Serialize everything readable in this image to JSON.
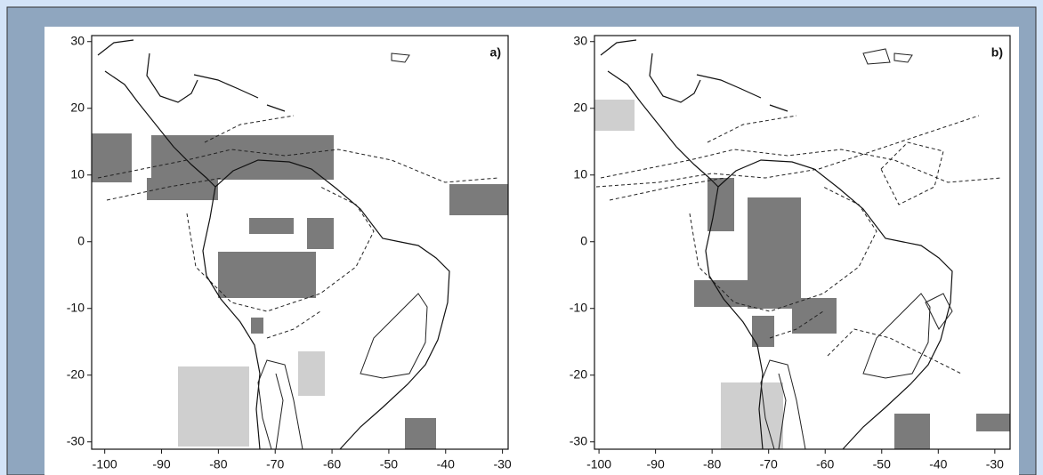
{
  "figure": {
    "panels": [
      {
        "label": "a)",
        "xlim": [
          -102.3,
          -29
        ],
        "ylim": [
          -31.1,
          30.9
        ],
        "xticks": [
          -100,
          -90,
          -80,
          -70,
          -60,
          -50,
          -40,
          -30
        ],
        "yticks": [
          30,
          20,
          10,
          0,
          -10,
          -20,
          -30
        ]
      },
      {
        "label": "b)",
        "xlim": [
          -100.8,
          -27.3
        ],
        "ylim": [
          -31.1,
          30.9
        ],
        "xticks": [
          -100,
          -90,
          -80,
          -70,
          -60,
          -50,
          -40,
          -30
        ],
        "yticks": [
          30,
          20,
          10,
          0,
          -10,
          -20,
          -30
        ]
      }
    ]
  }
}
